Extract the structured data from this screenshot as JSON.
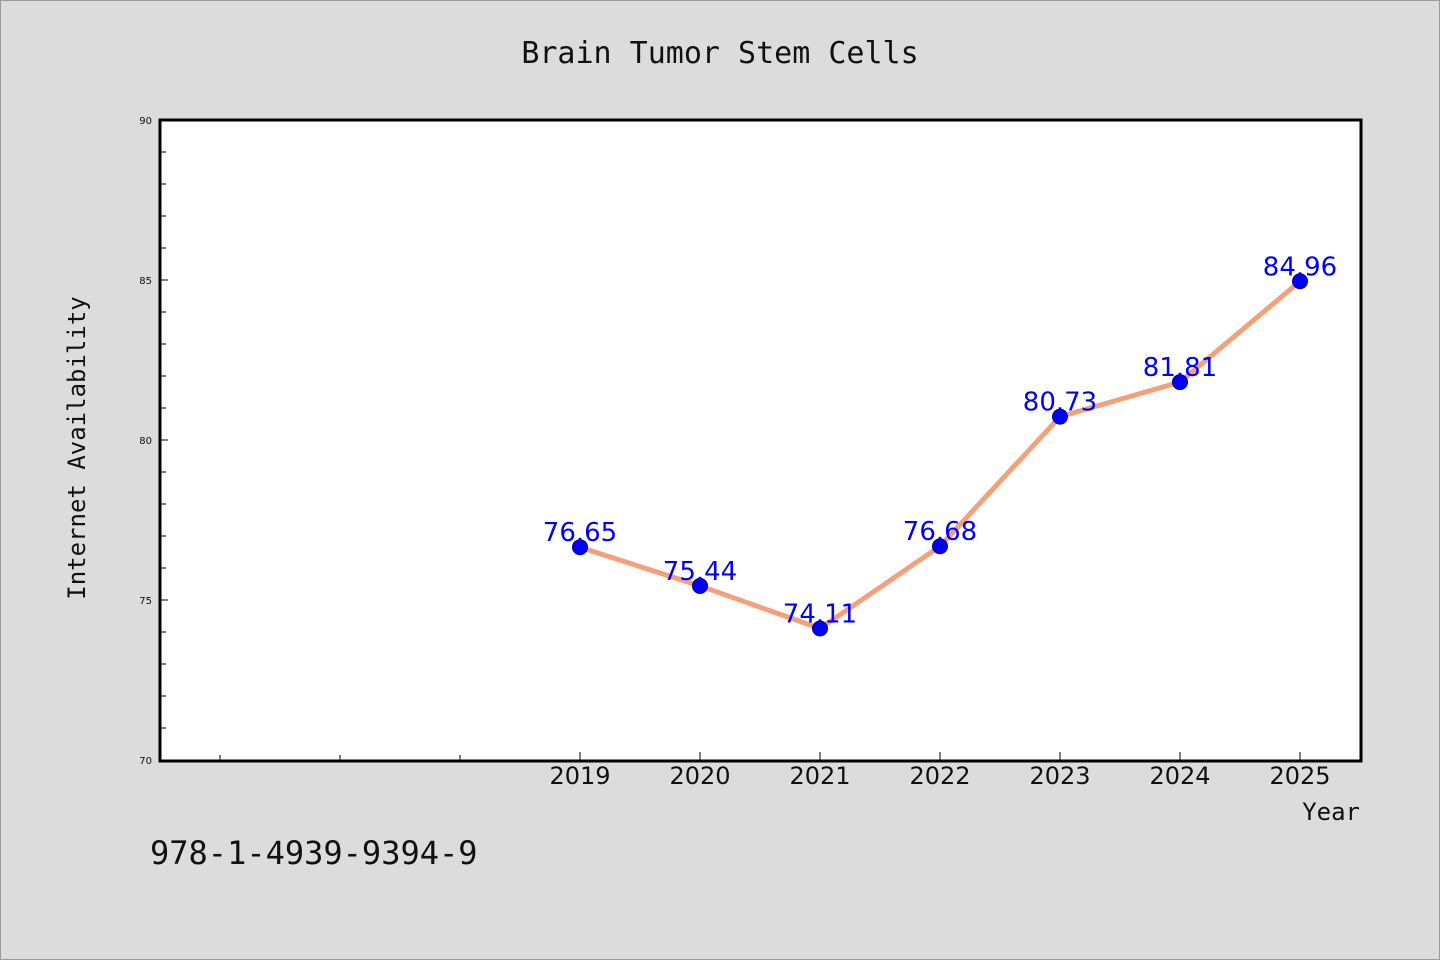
{
  "chart_data": {
    "type": "line",
    "title": "Brain Tumor Stem Cells",
    "xlabel": "Year",
    "ylabel": "Internet Availability",
    "x": [
      "2019",
      "2020",
      "2021",
      "2022",
      "2023",
      "2024",
      "2025"
    ],
    "series": [
      {
        "values": [
          76.65,
          75.44,
          74.11,
          76.68,
          80.73,
          81.81,
          84.96
        ]
      }
    ],
    "data_labels": [
      "76.65",
      "75.44",
      "74.11",
      "76.68",
      "80.73",
      "81.81",
      "84.96"
    ],
    "ylim": [
      70,
      90
    ],
    "yticks": [
      70,
      75,
      80,
      85,
      90
    ],
    "grid": false,
    "colors": {
      "line": "#f4a07a",
      "marker": "#0000ff",
      "label": "#0000ff"
    }
  },
  "footer": {
    "isbn": "978-1-4939-9394-9"
  }
}
